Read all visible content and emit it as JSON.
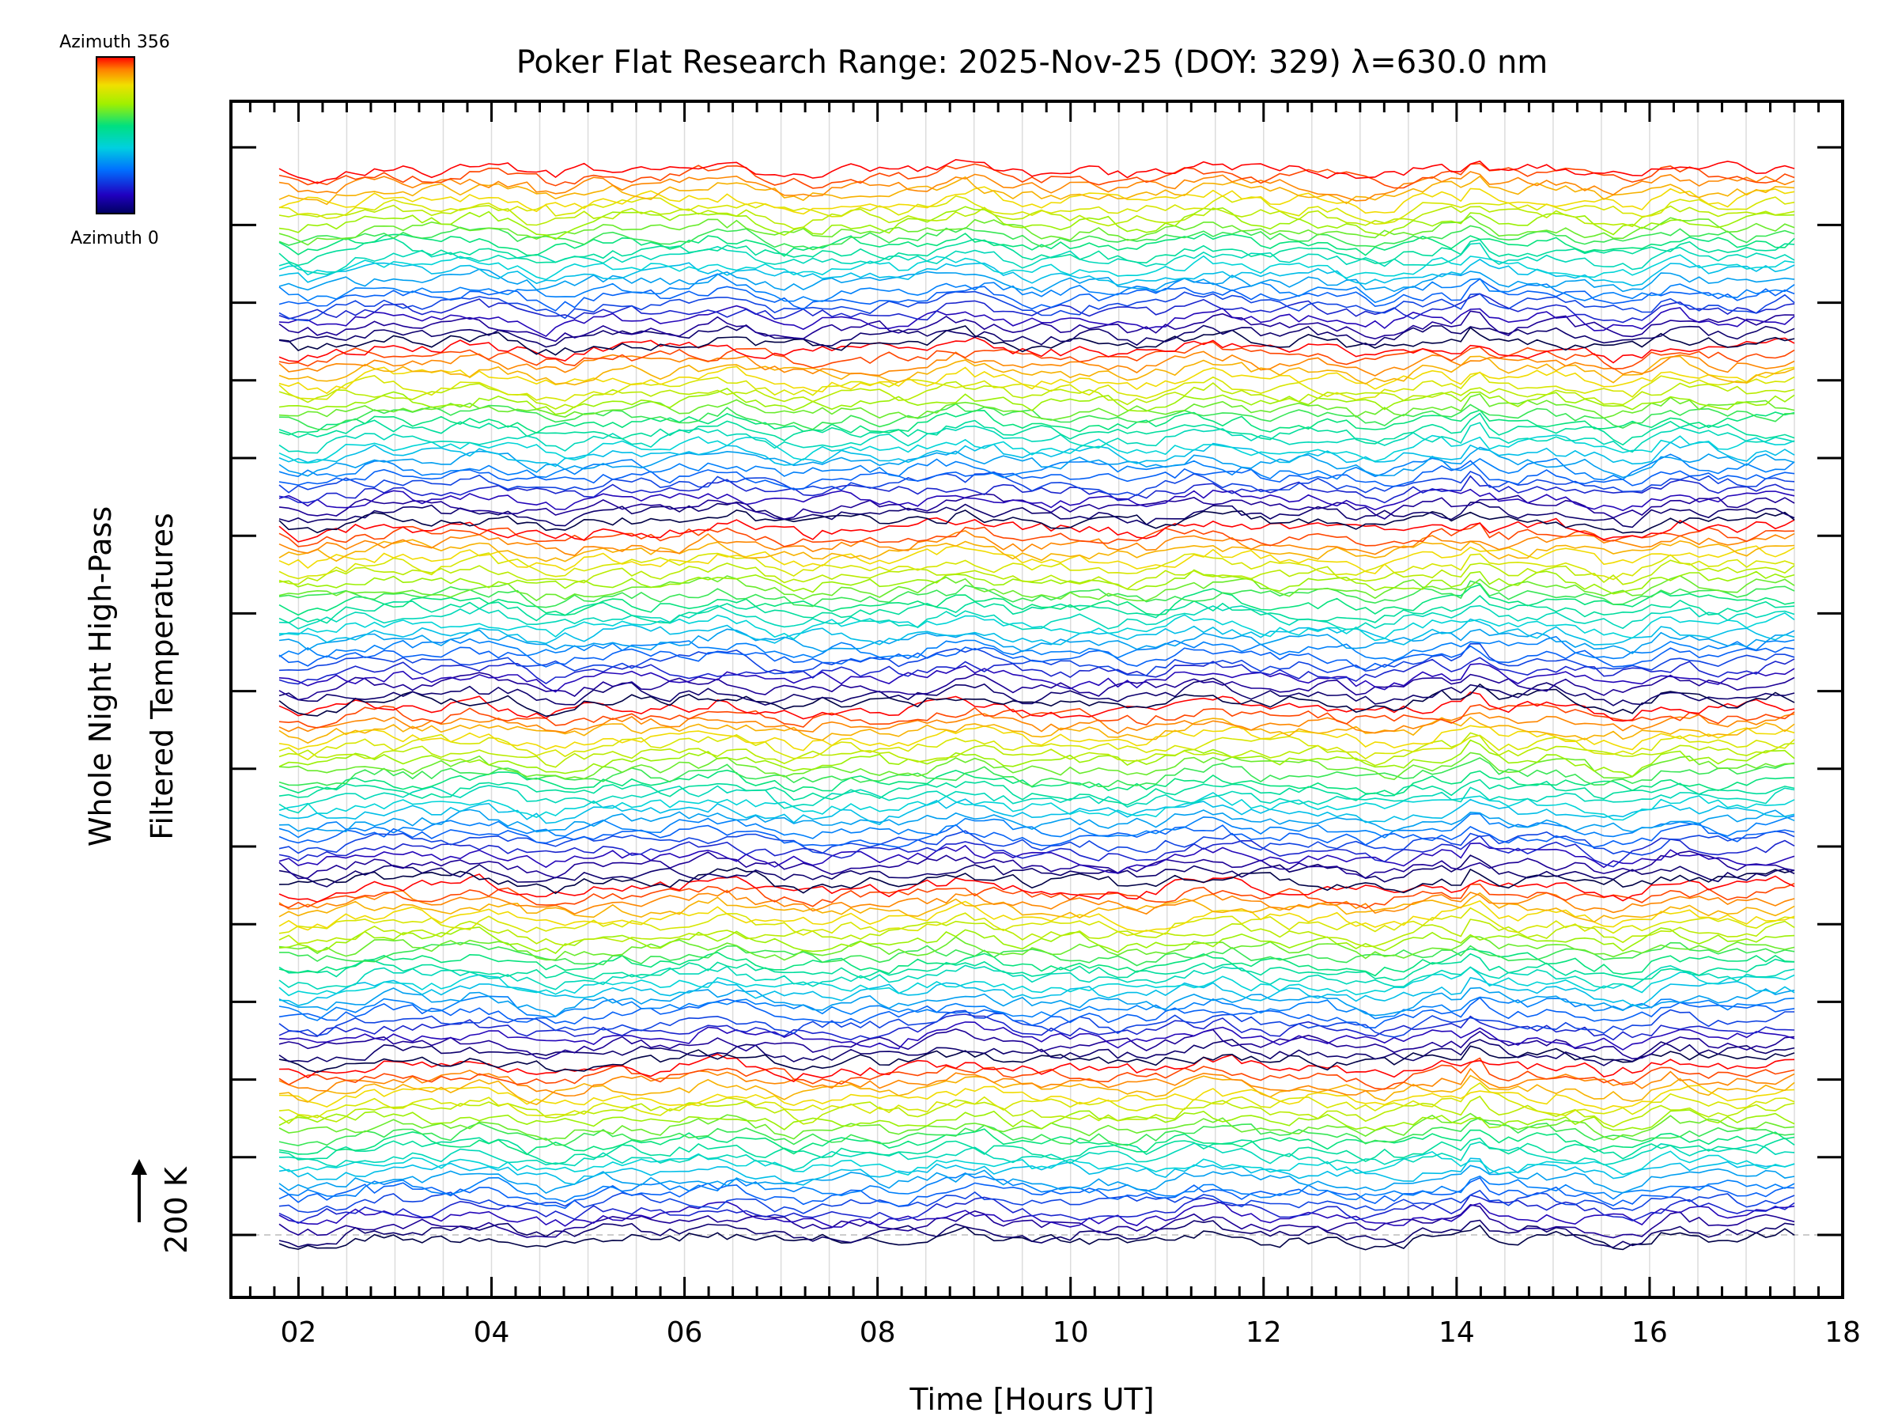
{
  "chart_data": {
    "type": "line",
    "title": "Poker Flat Research Range: 2025-Nov-25 (DOY: 329) λ=630.0 nm",
    "xlabel": "Time [Hours UT]",
    "ylabel_line1": "Whole Night High-Pass",
    "ylabel_line2": "Filtered Temperatures",
    "scale_marker": "200 K",
    "xlim": [
      1.3,
      18.0
    ],
    "x_ticks": [
      "02",
      "04",
      "06",
      "08",
      "10",
      "12",
      "14",
      "16",
      "18"
    ],
    "x_tick_values": [
      2,
      4,
      6,
      8,
      10,
      12,
      14,
      16,
      18
    ],
    "time_range": [
      1.8,
      17.5
    ],
    "scale_k": 200,
    "grid": true,
    "colorbar": {
      "max_label": "Azimuth 356",
      "min_label": "Azimuth 0",
      "colormap": "rainbow",
      "range": [
        0,
        356
      ]
    },
    "series_groups": 6,
    "series_per_group": 24,
    "colors": {
      "low_azimuth": "#000040",
      "mid_azimuth": "#00e0c0",
      "high_azimuth": "#ff3000"
    }
  }
}
